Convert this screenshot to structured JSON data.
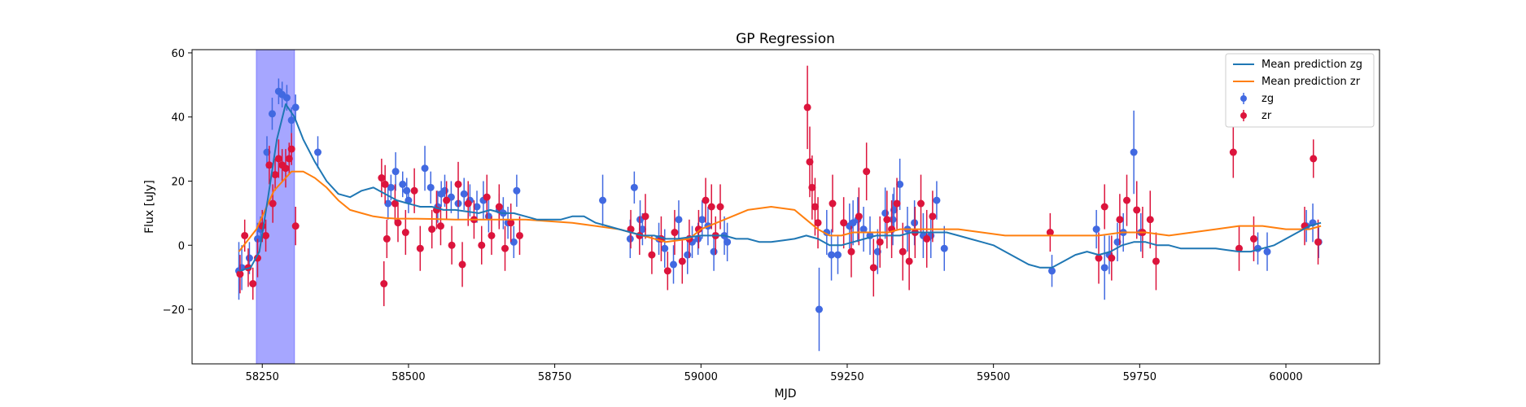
{
  "chart_data": {
    "type": "scatter",
    "title": "GP Regression",
    "xlabel": "MJD",
    "ylabel": "Flux [uJy]",
    "xlim": [
      58130,
      60160
    ],
    "ylim": [
      -37,
      61
    ],
    "xticks": [
      58250,
      58500,
      58750,
      59000,
      59250,
      59500,
      59750,
      60000
    ],
    "yticks": [
      -20,
      0,
      20,
      40,
      60
    ],
    "legend_position": "upper right",
    "shaded_region": {
      "x_start": 58240,
      "x_end": 58305,
      "color": "#a6a6ff"
    },
    "colors": {
      "zg_line": "#1f77b4",
      "zr_line": "#ff7f0e",
      "zg_points": "#4169e1",
      "zr_points": "#dc143c"
    },
    "series": [
      {
        "name": "Mean prediction zg",
        "kind": "line",
        "x": [
          58210,
          58230,
          58245,
          58260,
          58275,
          58290,
          58305,
          58320,
          58340,
          58360,
          58380,
          58400,
          58420,
          58440,
          58460,
          58480,
          58500,
          58520,
          58540,
          58560,
          58580,
          58600,
          58620,
          58640,
          58660,
          58680,
          58700,
          58720,
          58740,
          58760,
          58780,
          58800,
          58820,
          58840,
          58860,
          58880,
          58900,
          58920,
          58940,
          58960,
          58980,
          59000,
          59020,
          59040,
          59060,
          59080,
          59100,
          59120,
          59140,
          59160,
          59180,
          59200,
          59220,
          59240,
          59260,
          59280,
          59300,
          59320,
          59340,
          59360,
          59380,
          59400,
          59420,
          59440,
          59460,
          59480,
          59500,
          59520,
          59540,
          59560,
          59580,
          59600,
          59620,
          59640,
          59660,
          59680,
          59700,
          59720,
          59740,
          59760,
          59780,
          59800,
          59820,
          59840,
          59860,
          59880,
          59900,
          59920,
          59940,
          59960,
          59980,
          60000,
          60020,
          60040,
          60060
        ],
        "y": [
          -8,
          -7,
          -2,
          15,
          33,
          44,
          40,
          33,
          26,
          20,
          16,
          15,
          17,
          18,
          16,
          14,
          13,
          12,
          12,
          11,
          11,
          10.5,
          10,
          11,
          10,
          10,
          9,
          8,
          8,
          8,
          9,
          9,
          7,
          6,
          5,
          4,
          3,
          3,
          2,
          2,
          2.5,
          3,
          3,
          3,
          2,
          2,
          1,
          1,
          1.5,
          2,
          3,
          2,
          0,
          0,
          1,
          2,
          3,
          3,
          3,
          4,
          4,
          4,
          4,
          3,
          2,
          1,
          0,
          -2,
          -4,
          -6,
          -7,
          -7,
          -5,
          -3,
          -2,
          -3,
          -2,
          0,
          1,
          1,
          0,
          0,
          -1,
          -1,
          -1,
          -1,
          -1.5,
          -2,
          -2,
          -1,
          0,
          2,
          4,
          6,
          7
        ]
      },
      {
        "name": "Mean prediction zr",
        "kind": "line",
        "x": [
          58210,
          58240,
          58270,
          58300,
          58320,
          58340,
          58360,
          58380,
          58400,
          58420,
          58440,
          58460,
          58480,
          58500,
          58540,
          58580,
          58620,
          58660,
          58700,
          58740,
          58780,
          58820,
          58860,
          58900,
          58940,
          58980,
          59000,
          59040,
          59080,
          59120,
          59160,
          59180,
          59200,
          59220,
          59240,
          59260,
          59280,
          59300,
          59320,
          59340,
          59360,
          59380,
          59400,
          59440,
          59480,
          59520,
          59560,
          59600,
          59640,
          59680,
          59720,
          59760,
          59800,
          59840,
          59880,
          59920,
          59960,
          60000,
          60040,
          60060
        ],
        "y": [
          -2,
          5,
          17,
          23,
          23,
          21,
          18,
          14,
          11,
          10,
          9,
          8.5,
          8.3,
          8.3,
          8.2,
          8,
          8,
          8,
          8,
          7.5,
          7,
          6,
          5,
          3,
          1,
          2,
          5,
          8,
          11,
          12,
          11,
          8,
          5,
          3,
          3,
          4,
          4,
          4,
          4,
          5,
          5,
          5,
          5,
          5,
          4,
          3,
          3,
          3,
          3,
          3,
          4,
          4,
          3,
          4,
          5,
          6,
          6,
          5,
          5,
          6
        ]
      },
      {
        "name": "zg",
        "kind": "errorbar",
        "x": [
          58210,
          58215,
          58228,
          58242,
          58247,
          58258,
          58267,
          58278,
          58284,
          58292,
          58300,
          58307,
          58345,
          58465,
          58470,
          58478,
          58490,
          58497,
          58500,
          58528,
          58538,
          58550,
          58556,
          58562,
          58573,
          58585,
          58595,
          58605,
          58617,
          58628,
          58637,
          58655,
          58662,
          58670,
          58680,
          58685,
          58832,
          58879,
          58886,
          58896,
          58900,
          58928,
          58938,
          58953,
          58962,
          58977,
          58985,
          58995,
          59002,
          59012,
          59022,
          59040,
          59045,
          59202,
          59215,
          59223,
          59234,
          59254,
          59260,
          59268,
          59278,
          59289,
          59302,
          59315,
          59328,
          59330,
          59340,
          59353,
          59365,
          59380,
          59393,
          59403,
          59416,
          59600,
          59676,
          59690,
          59698,
          59712,
          59722,
          59740,
          59752,
          59952,
          59968,
          60035,
          60046,
          60056
        ],
        "y": [
          -8,
          -7,
          -4,
          2,
          5,
          29,
          41,
          48,
          47,
          46,
          39,
          43,
          29,
          13,
          18,
          23,
          19,
          17,
          14,
          24,
          18,
          12,
          16,
          17,
          15,
          13,
          16,
          14,
          12,
          14,
          9,
          11,
          10,
          7,
          1,
          17,
          14,
          2,
          18,
          8,
          5,
          2,
          -1,
          -6,
          8,
          -3,
          1,
          2,
          8,
          6,
          -2,
          3,
          1,
          -20,
          4,
          -3,
          -3,
          6,
          7,
          8,
          5,
          3,
          -2,
          10,
          8,
          11,
          19,
          5,
          7,
          3,
          3,
          14,
          -1,
          -8,
          5,
          -7,
          -3,
          1,
          4,
          29,
          4,
          -1,
          -2,
          6,
          7,
          1
        ],
        "err": [
          9,
          7,
          5,
          5,
          4,
          5,
          5,
          4,
          4,
          4,
          4,
          4,
          5,
          5,
          4,
          6,
          4,
          4,
          4,
          7,
          5,
          5,
          4,
          5,
          5,
          5,
          5,
          5,
          5,
          6,
          5,
          5,
          5,
          5,
          5,
          5,
          8,
          6,
          5,
          6,
          5,
          5,
          6,
          6,
          6,
          6,
          5,
          5,
          6,
          6,
          6,
          6,
          6,
          13,
          7,
          8,
          6,
          7,
          7,
          7,
          7,
          6,
          7,
          8,
          8,
          7,
          8,
          7,
          7,
          7,
          7,
          6,
          7,
          5,
          6,
          10,
          6,
          6,
          6,
          13,
          6,
          5,
          6,
          5,
          6,
          5
        ]
      },
      {
        "name": "zr",
        "kind": "errorbar",
        "x": [
          58212,
          58220,
          58226,
          58234,
          58242,
          58250,
          58256,
          58262,
          58268,
          58272,
          58278,
          58284,
          58290,
          58296,
          58300,
          58307,
          58454,
          58458,
          58460,
          58463,
          58477,
          58482,
          58495,
          58510,
          58520,
          58540,
          58548,
          58555,
          58565,
          58574,
          58585,
          58592,
          58602,
          58612,
          58625,
          58634,
          58642,
          58655,
          58665,
          58675,
          58690,
          58880,
          58895,
          58905,
          58916,
          58932,
          58943,
          58955,
          58968,
          58980,
          58996,
          59008,
          59018,
          59025,
          59033,
          59182,
          59186,
          59190,
          59195,
          59200,
          59225,
          59244,
          59257,
          59270,
          59283,
          59295,
          59306,
          59318,
          59326,
          59335,
          59345,
          59356,
          59366,
          59376,
          59386,
          59396,
          59597,
          59680,
          59690,
          59702,
          59716,
          59728,
          59745,
          59755,
          59768,
          59778,
          59910,
          59920,
          59945,
          60032,
          60047,
          60055
        ],
        "y": [
          -9,
          3,
          -7,
          -12,
          -4,
          6,
          3,
          25,
          13,
          22,
          27,
          25,
          24,
          27,
          30,
          6,
          21,
          -12,
          19,
          2,
          13,
          7,
          4,
          17,
          -1,
          5,
          11,
          6,
          14,
          0,
          19,
          -6,
          13,
          8,
          0,
          15,
          3,
          12,
          -1,
          7,
          3,
          5,
          3,
          9,
          -3,
          2,
          -8,
          4,
          -5,
          2,
          5,
          14,
          12,
          3,
          12,
          43,
          26,
          18,
          12,
          7,
          13,
          7,
          -2,
          9,
          23,
          -7,
          1,
          8,
          5,
          13,
          -2,
          -5,
          4,
          13,
          2,
          9,
          4,
          -4,
          12,
          -4,
          8,
          14,
          11,
          4,
          8,
          -5,
          29,
          -1,
          2,
          6,
          27,
          1
        ],
        "err": [
          6,
          5,
          6,
          5,
          6,
          5,
          5,
          6,
          6,
          5,
          6,
          5,
          6,
          5,
          5,
          6,
          6,
          7,
          6,
          6,
          6,
          6,
          7,
          7,
          7,
          6,
          6,
          6,
          6,
          6,
          7,
          7,
          7,
          6,
          6,
          7,
          6,
          7,
          7,
          6,
          6,
          6,
          6,
          7,
          6,
          7,
          6,
          7,
          7,
          6,
          6,
          7,
          7,
          6,
          7,
          13,
          11,
          10,
          9,
          8,
          9,
          8,
          8,
          9,
          9,
          9,
          8,
          9,
          9,
          8,
          9,
          9,
          8,
          9,
          9,
          8,
          6,
          8,
          7,
          7,
          8,
          8,
          9,
          8,
          9,
          9,
          8,
          7,
          7,
          6,
          6,
          7
        ]
      }
    ]
  }
}
